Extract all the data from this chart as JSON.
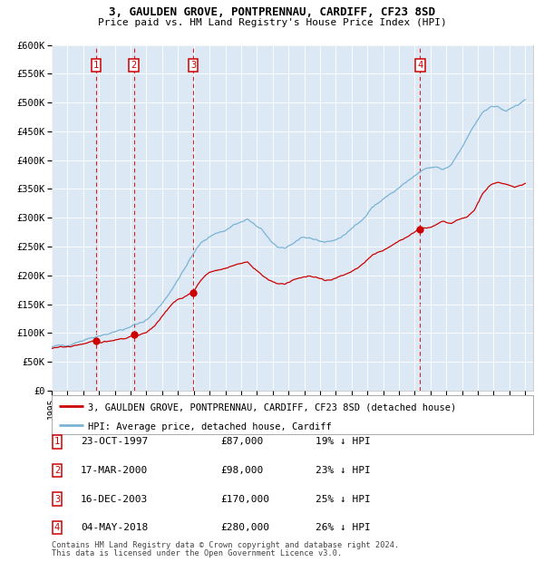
{
  "title_line1": "3, GAULDEN GROVE, PONTPRENNAU, CARDIFF, CF23 8SD",
  "title_line2": "Price paid vs. HM Land Registry's House Price Index (HPI)",
  "background_color": "#dce9f5",
  "hpi_color": "#7ab3d4",
  "price_color": "#cc0000",
  "ylim": [
    0,
    600000
  ],
  "yticks": [
    0,
    50000,
    100000,
    150000,
    200000,
    250000,
    300000,
    350000,
    400000,
    450000,
    500000,
    550000,
    600000
  ],
  "ytick_labels": [
    "£0",
    "£50K",
    "£100K",
    "£150K",
    "£200K",
    "£250K",
    "£300K",
    "£350K",
    "£400K",
    "£450K",
    "£500K",
    "£550K",
    "£600K"
  ],
  "xtick_years": [
    1995,
    1996,
    1997,
    1998,
    1999,
    2000,
    2001,
    2002,
    2003,
    2004,
    2005,
    2006,
    2007,
    2008,
    2009,
    2010,
    2011,
    2012,
    2013,
    2014,
    2015,
    2016,
    2017,
    2018,
    2019,
    2020,
    2021,
    2022,
    2023,
    2024,
    2025
  ],
  "transactions": [
    {
      "num": 1,
      "date_x": 1997.81,
      "price": 87000,
      "label": "23-OCT-1997",
      "price_str": "£87,000",
      "pct": "19% ↓ HPI"
    },
    {
      "num": 2,
      "date_x": 2000.21,
      "price": 98000,
      "label": "17-MAR-2000",
      "price_str": "£98,000",
      "pct": "23% ↓ HPI"
    },
    {
      "num": 3,
      "date_x": 2003.96,
      "price": 170000,
      "label": "16-DEC-2003",
      "price_str": "£170,000",
      "pct": "25% ↓ HPI"
    },
    {
      "num": 4,
      "date_x": 2018.34,
      "price": 280000,
      "label": "04-MAY-2018",
      "price_str": "£280,000",
      "pct": "26% ↓ HPI"
    }
  ],
  "legend_house_label": "3, GAULDEN GROVE, PONTPRENNAU, CARDIFF, CF23 8SD (detached house)",
  "legend_hpi_label": "HPI: Average price, detached house, Cardiff",
  "footer_line1": "Contains HM Land Registry data © Crown copyright and database right 2024.",
  "footer_line2": "This data is licensed under the Open Government Licence v3.0.",
  "hpi_anchors": [
    [
      1995.0,
      75000
    ],
    [
      1995.5,
      77500
    ],
    [
      1996.0,
      80000
    ],
    [
      1996.5,
      84000
    ],
    [
      1997.0,
      88000
    ],
    [
      1997.5,
      92000
    ],
    [
      1998.0,
      96000
    ],
    [
      1998.5,
      99000
    ],
    [
      1999.0,
      102000
    ],
    [
      1999.5,
      106000
    ],
    [
      2000.0,
      110000
    ],
    [
      2000.5,
      116000
    ],
    [
      2001.0,
      123000
    ],
    [
      2001.5,
      135000
    ],
    [
      2002.0,
      152000
    ],
    [
      2002.5,
      172000
    ],
    [
      2003.0,
      192000
    ],
    [
      2003.5,
      215000
    ],
    [
      2004.0,
      238000
    ],
    [
      2004.5,
      258000
    ],
    [
      2005.0,
      268000
    ],
    [
      2005.5,
      274000
    ],
    [
      2006.0,
      278000
    ],
    [
      2006.5,
      287000
    ],
    [
      2007.0,
      292000
    ],
    [
      2007.4,
      296000
    ],
    [
      2007.8,
      290000
    ],
    [
      2008.3,
      278000
    ],
    [
      2008.8,
      262000
    ],
    [
      2009.3,
      250000
    ],
    [
      2009.8,
      248000
    ],
    [
      2010.3,
      255000
    ],
    [
      2010.8,
      262000
    ],
    [
      2011.3,
      265000
    ],
    [
      2011.8,
      262000
    ],
    [
      2012.3,
      258000
    ],
    [
      2012.8,
      260000
    ],
    [
      2013.3,
      266000
    ],
    [
      2013.8,
      275000
    ],
    [
      2014.3,
      288000
    ],
    [
      2014.8,
      302000
    ],
    [
      2015.3,
      318000
    ],
    [
      2015.8,
      328000
    ],
    [
      2016.3,
      338000
    ],
    [
      2016.8,
      348000
    ],
    [
      2017.3,
      358000
    ],
    [
      2017.8,
      368000
    ],
    [
      2018.3,
      378000
    ],
    [
      2018.8,
      385000
    ],
    [
      2019.3,
      388000
    ],
    [
      2019.8,
      383000
    ],
    [
      2020.3,
      392000
    ],
    [
      2020.8,
      415000
    ],
    [
      2021.3,
      438000
    ],
    [
      2021.8,
      462000
    ],
    [
      2022.3,
      482000
    ],
    [
      2022.8,
      492000
    ],
    [
      2023.3,
      490000
    ],
    [
      2023.8,
      487000
    ],
    [
      2024.3,
      492000
    ],
    [
      2024.8,
      500000
    ],
    [
      2025.0,
      505000
    ]
  ],
  "price_anchors": [
    [
      1995.0,
      73000
    ],
    [
      1995.5,
      74500
    ],
    [
      1996.0,
      76000
    ],
    [
      1996.5,
      79000
    ],
    [
      1997.0,
      81500
    ],
    [
      1997.5,
      84000
    ],
    [
      1997.81,
      87000
    ],
    [
      1998.1,
      83000
    ],
    [
      1998.5,
      85000
    ],
    [
      1999.0,
      87500
    ],
    [
      1999.5,
      91000
    ],
    [
      2000.0,
      94000
    ],
    [
      2000.21,
      98000
    ],
    [
      2000.5,
      95000
    ],
    [
      2001.0,
      100000
    ],
    [
      2001.5,
      112000
    ],
    [
      2002.0,
      128000
    ],
    [
      2002.5,
      145000
    ],
    [
      2003.0,
      158000
    ],
    [
      2003.5,
      165000
    ],
    [
      2003.96,
      170000
    ],
    [
      2004.3,
      185000
    ],
    [
      2004.8,
      202000
    ],
    [
      2005.0,
      206000
    ],
    [
      2005.5,
      210000
    ],
    [
      2006.0,
      212000
    ],
    [
      2006.5,
      216000
    ],
    [
      2007.0,
      220000
    ],
    [
      2007.4,
      224000
    ],
    [
      2007.8,
      212000
    ],
    [
      2008.3,
      202000
    ],
    [
      2008.8,
      192000
    ],
    [
      2009.3,
      186000
    ],
    [
      2009.8,
      184000
    ],
    [
      2010.3,
      192000
    ],
    [
      2010.8,
      196000
    ],
    [
      2011.3,
      199000
    ],
    [
      2011.8,
      196000
    ],
    [
      2012.3,
      191000
    ],
    [
      2012.8,
      193000
    ],
    [
      2013.3,
      198000
    ],
    [
      2013.8,
      204000
    ],
    [
      2014.3,
      213000
    ],
    [
      2014.8,
      222000
    ],
    [
      2015.3,
      234000
    ],
    [
      2015.8,
      242000
    ],
    [
      2016.3,
      250000
    ],
    [
      2016.8,
      258000
    ],
    [
      2017.3,
      264000
    ],
    [
      2017.8,
      272000
    ],
    [
      2018.3,
      280000
    ],
    [
      2018.8,
      283000
    ],
    [
      2019.3,
      287000
    ],
    [
      2019.8,
      294000
    ],
    [
      2020.3,
      290000
    ],
    [
      2020.8,
      297000
    ],
    [
      2021.3,
      302000
    ],
    [
      2021.8,
      315000
    ],
    [
      2022.3,
      342000
    ],
    [
      2022.8,
      358000
    ],
    [
      2023.3,
      362000
    ],
    [
      2023.8,
      357000
    ],
    [
      2024.3,
      352000
    ],
    [
      2024.8,
      357000
    ],
    [
      2025.0,
      360000
    ]
  ]
}
